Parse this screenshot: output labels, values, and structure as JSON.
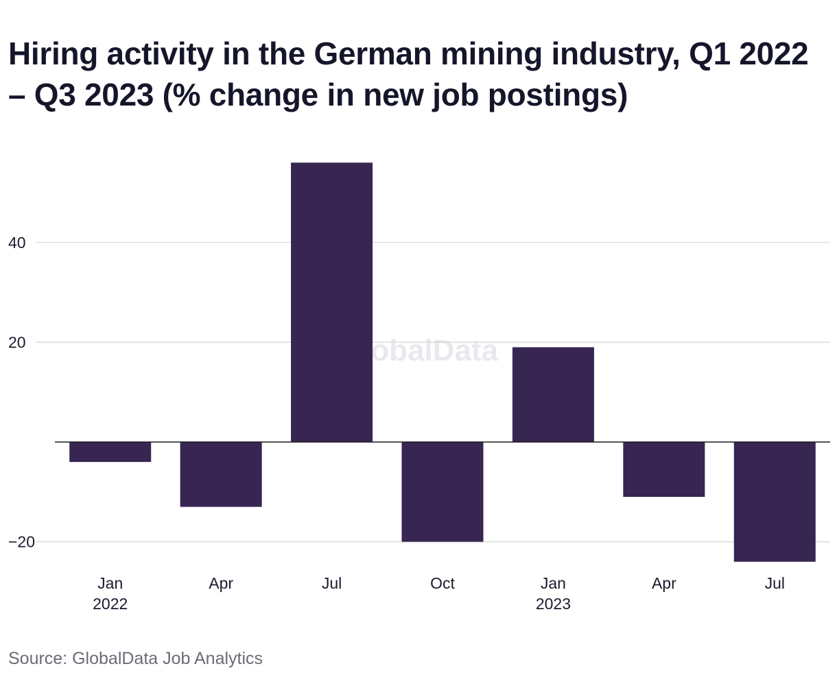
{
  "title": "Hiring activity in the German mining industry, Q1 2022 – Q3 2023 (% change in new job postings)",
  "source": "Source: GlobalData Job Analytics",
  "watermark": "GlobalData",
  "colors": {
    "bar": "#372552",
    "grid": "#d6d6d6",
    "baseline": "#1a1a1a"
  },
  "chart_data": {
    "type": "bar",
    "title": "Hiring activity in the German mining industry, Q1 2022 – Q3 2023 (% change in new job postings)",
    "xlabel": "",
    "ylabel": "",
    "categories": [
      "Jan 2022",
      "Apr 2022",
      "Jul 2022",
      "Oct 2022",
      "Jan 2023",
      "Apr 2023",
      "Jul 2023"
    ],
    "x_tick_labels": [
      {
        "month": "Jan",
        "year": "2022"
      },
      {
        "month": "Apr",
        "year": ""
      },
      {
        "month": "Jul",
        "year": ""
      },
      {
        "month": "Oct",
        "year": ""
      },
      {
        "month": "Jan",
        "year": "2023"
      },
      {
        "month": "Apr",
        "year": ""
      },
      {
        "month": "Jul",
        "year": ""
      }
    ],
    "values": [
      -4,
      -13,
      56,
      -20,
      19,
      -11,
      -24
    ],
    "y_ticks": [
      -20,
      20,
      40
    ],
    "y_tick_labels": [
      "−20",
      "20",
      "40"
    ],
    "ylim": [
      -24,
      56
    ],
    "grid": true,
    "legend": "none"
  }
}
